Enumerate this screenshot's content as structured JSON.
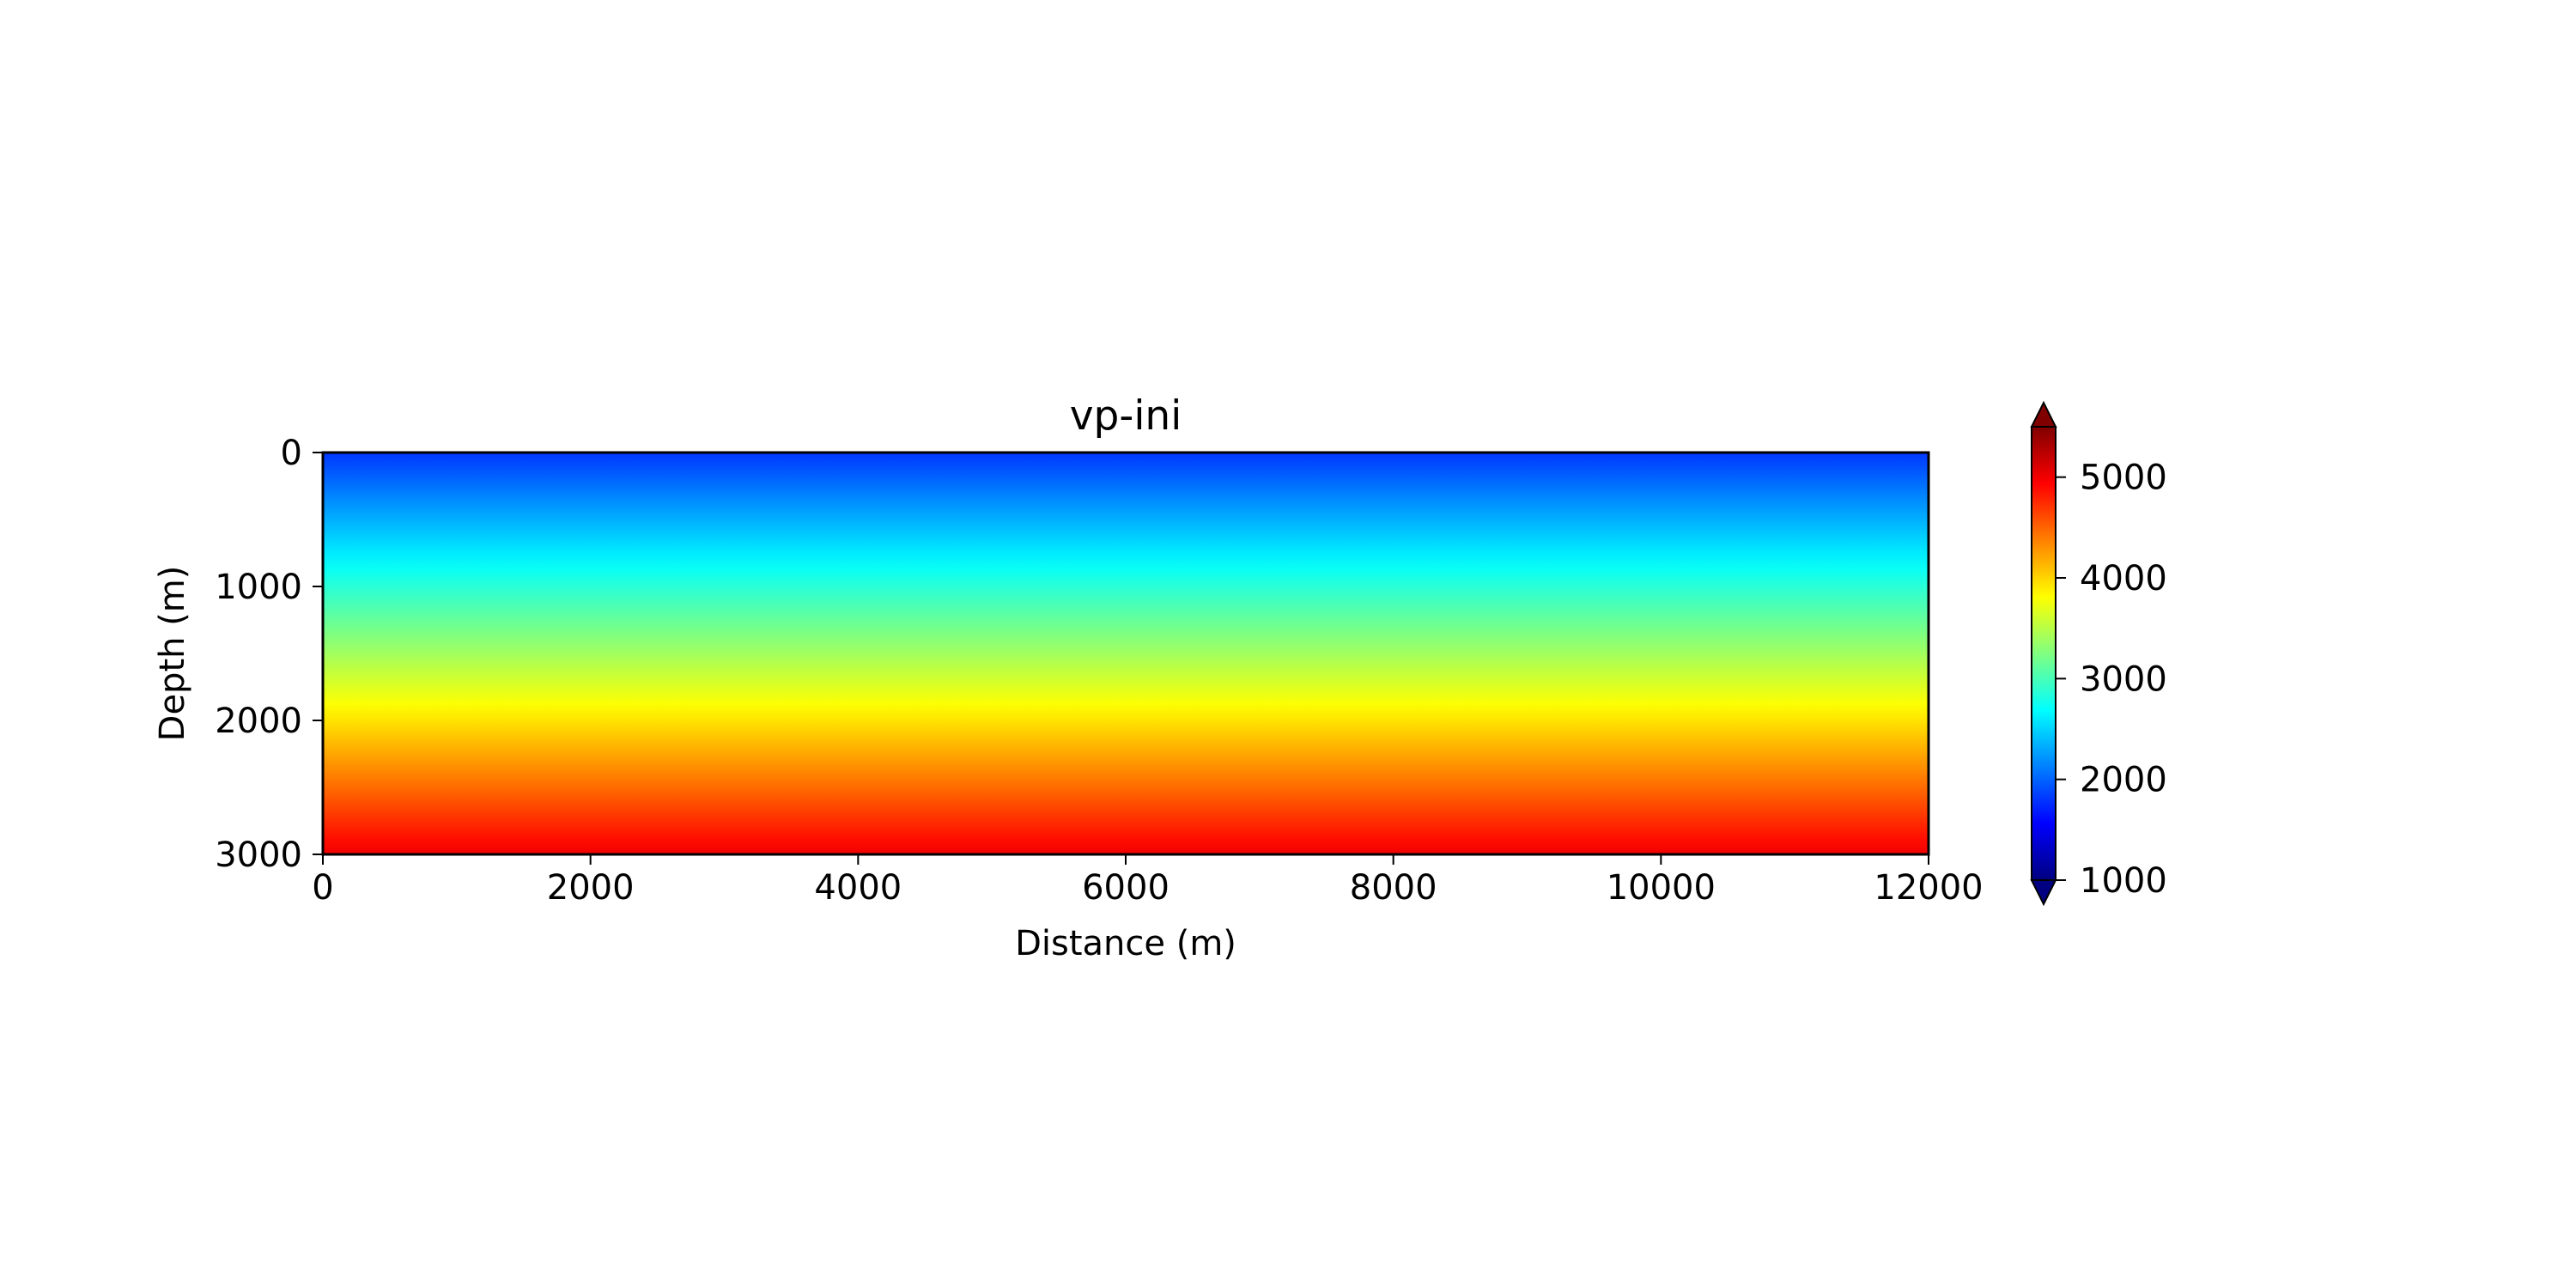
{
  "chart_data": {
    "type": "heatmap",
    "title": "vp-ini",
    "xlabel": "Distance (m)",
    "ylabel": "Depth (m)",
    "xlim": [
      0,
      12000
    ],
    "ylim": [
      3000,
      0
    ],
    "xticks": [
      "0",
      "2000",
      "4000",
      "6000",
      "8000",
      "10000",
      "12000"
    ],
    "yticks": [
      "0",
      "1000",
      "2000",
      "3000"
    ],
    "colormap": "jet",
    "colorbar": {
      "vmin": 1000,
      "vmax": 5500,
      "extend": "both",
      "ticks": [
        "1000",
        "2000",
        "3000",
        "4000",
        "5000"
      ]
    },
    "velocity_profile": {
      "depth": [
        0,
        3000
      ],
      "velocity": [
        1800,
        5000
      ],
      "laterally_constant": true
    }
  }
}
